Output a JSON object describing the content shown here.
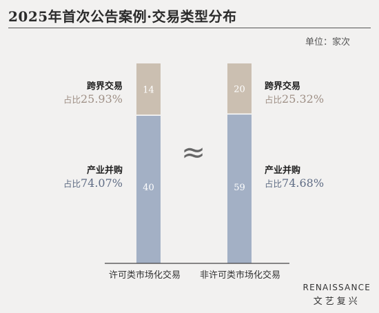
{
  "title": "2025年首次公告案例·交易类型分布",
  "unit": "单位：家次",
  "approx_symbol": "≈",
  "logo": {
    "en": "RENAISSANCE",
    "cn": "文艺复兴"
  },
  "colors": {
    "cross_border": "#cbbfb1",
    "industrial": "#a3b0c5",
    "pct_top": "#9e8f85",
    "pct_bottom": "#5f6c84"
  },
  "chart_data": {
    "type": "bar",
    "stacked": true,
    "categories": [
      "许可类市场化交易",
      "非许可类市场化交易"
    ],
    "series": [
      {
        "name": "产业并购",
        "values": [
          40,
          59
        ],
        "share_labels": [
          "74.07%",
          "74.68%"
        ]
      },
      {
        "name": "跨界交易",
        "values": [
          14,
          20
        ],
        "share_labels": [
          "25.93%",
          "25.32%"
        ]
      }
    ],
    "share_prefix": "占比",
    "ylabel": "",
    "xlabel": ""
  }
}
